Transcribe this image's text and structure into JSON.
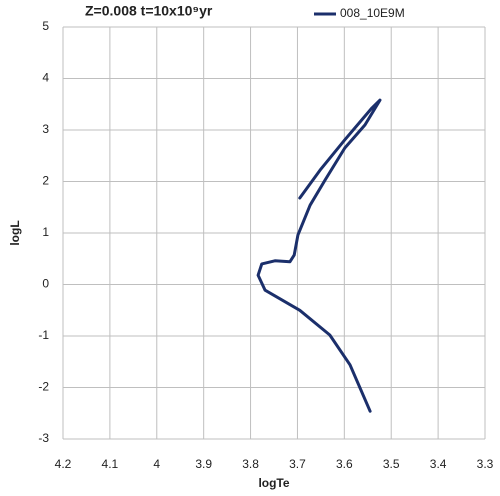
{
  "chart_data": {
    "type": "line",
    "title": "Z=0.008 t=10x10⁹yr",
    "x_label": "logTe",
    "y_label": "logL",
    "xlim": [
      4.2,
      3.3
    ],
    "xticks": [
      4.2,
      4.1,
      4,
      3.9,
      3.8,
      3.7,
      3.6,
      3.5,
      3.4,
      3.3
    ],
    "ylim": [
      -3,
      5
    ],
    "yticks": [
      -3,
      -2,
      -1,
      0,
      1,
      2,
      3,
      4,
      5
    ],
    "grid": true,
    "legend": "top-right",
    "series": [
      {
        "name": "008_10E9M",
        "color": "#1b2f6b",
        "x": [
          3.545,
          3.588,
          3.631,
          3.695,
          3.769,
          3.784,
          3.776,
          3.748,
          3.716,
          3.707,
          3.699,
          3.673,
          3.641,
          3.599,
          3.556,
          3.524,
          3.541,
          3.599,
          3.652,
          3.695
        ],
        "values": [
          -2.46,
          -1.56,
          -0.98,
          -0.5,
          -0.11,
          0.18,
          0.4,
          0.46,
          0.44,
          0.57,
          0.96,
          1.54,
          2.03,
          2.65,
          3.1,
          3.58,
          3.43,
          2.81,
          2.22,
          1.68
        ]
      }
    ]
  }
}
